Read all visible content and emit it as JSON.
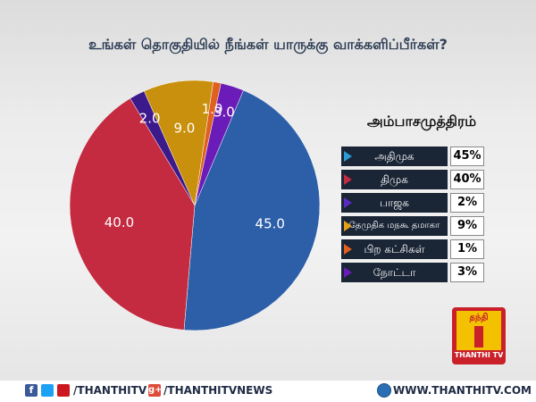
{
  "title": "உங்கள் தொகுதியில் நீங்கள் யாருக்கு வாக்களிப்பீர்கள்?",
  "chart_data": {
    "type": "pie",
    "subtitle": "அம்பாசமுத்திரம்",
    "slices": [
      {
        "label": "அதிமுக",
        "value": 45,
        "value_label": "45.0",
        "legend_value": "45%",
        "color": "#2d5ea8"
      },
      {
        "label": "திமுக",
        "value": 40,
        "value_label": "40.0",
        "legend_value": "40%",
        "color": "#c42a40"
      },
      {
        "label": "பாஜக",
        "value": 2,
        "value_label": "2.0",
        "legend_value": "2%",
        "color": "#3d1a8c"
      },
      {
        "label": "தேமுதிக மநகூ தமாகா",
        "value": 9,
        "value_label": "9.0",
        "legend_value": "9%",
        "color": "#c8900c"
      },
      {
        "label": "பிற கட்சிகள்",
        "value": 1,
        "value_label": "1.0",
        "legend_value": "1%",
        "color": "#e0601f"
      },
      {
        "label": "நோட்டா",
        "value": 3,
        "value_label": "3.0",
        "legend_value": "3%",
        "color": "#6b1bb8"
      }
    ],
    "legend_position": "right"
  },
  "logo": {
    "top_text": "தந்தி",
    "bottom_text": "THANTHI TV"
  },
  "footer": {
    "fb_icon": "facebook-icon",
    "tw_icon": "twitter-icon",
    "yt_icon": "youtube-icon",
    "handle1": "/THANTHITV",
    "gp_icon": "googleplus-icon",
    "handle2": "/THANTHITVNEWS",
    "globe_icon": "globe-icon",
    "website": "WWW.THANTHITV.COM"
  }
}
